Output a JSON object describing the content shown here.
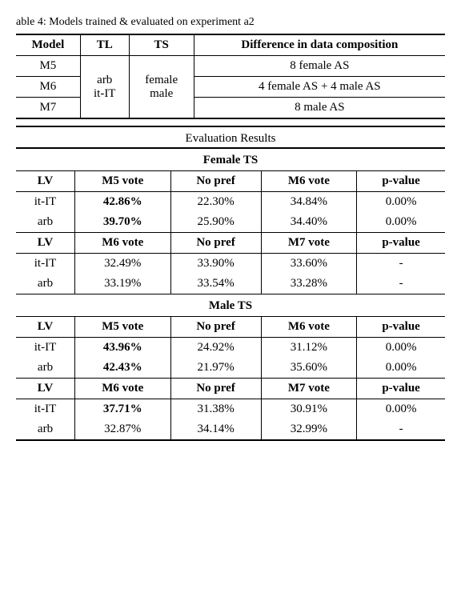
{
  "caption": "able 4: Models trained & evaluated on experiment a2",
  "table1": {
    "headers": {
      "model": "Model",
      "tl": "TL",
      "ts": "TS",
      "diff": "Difference in data composition"
    },
    "tl_lines": [
      "arb",
      "it-IT"
    ],
    "ts_lines": [
      "female",
      "male"
    ],
    "rows": [
      {
        "model": "M5",
        "diff": "8 female AS"
      },
      {
        "model": "M6",
        "diff": "4 female AS + 4 male AS"
      },
      {
        "model": "M7",
        "diff": "8 male AS"
      }
    ]
  },
  "eval_title": "Evaluation Results",
  "sections": [
    {
      "title": "Female TS",
      "blocks": [
        {
          "headers": {
            "lv": "LV",
            "c1": "M5 vote",
            "c2": "No pref",
            "c3": "M6 vote",
            "p": "p-value"
          },
          "rows": [
            {
              "lv": "it-IT",
              "c1": "42.86%",
              "c1_bold": true,
              "c2": "22.30%",
              "c3": "34.84%",
              "p": "0.00%"
            },
            {
              "lv": "arb",
              "c1": "39.70%",
              "c1_bold": true,
              "c2": "25.90%",
              "c3": "34.40%",
              "p": "0.00%"
            }
          ]
        },
        {
          "headers": {
            "lv": "LV",
            "c1": "M6 vote",
            "c2": "No pref",
            "c3": "M7 vote",
            "p": "p-value"
          },
          "rows": [
            {
              "lv": "it-IT",
              "c1": "32.49%",
              "c1_bold": false,
              "c2": "33.90%",
              "c3": "33.60%",
              "p": "-"
            },
            {
              "lv": "arb",
              "c1": "33.19%",
              "c1_bold": false,
              "c2": "33.54%",
              "c3": "33.28%",
              "p": "-"
            }
          ]
        }
      ]
    },
    {
      "title": "Male TS",
      "blocks": [
        {
          "headers": {
            "lv": "LV",
            "c1": "M5 vote",
            "c2": "No pref",
            "c3": "M6 vote",
            "p": "p-value"
          },
          "rows": [
            {
              "lv": "it-IT",
              "c1": "43.96%",
              "c1_bold": true,
              "c2": "24.92%",
              "c3": "31.12%",
              "p": "0.00%"
            },
            {
              "lv": "arb",
              "c1": "42.43%",
              "c1_bold": true,
              "c2": "21.97%",
              "c3": "35.60%",
              "p": "0.00%"
            }
          ]
        },
        {
          "headers": {
            "lv": "LV",
            "c1": "M6 vote",
            "c2": "No pref",
            "c3": "M7 vote",
            "p": "p-value"
          },
          "rows": [
            {
              "lv": "it-IT",
              "c1": "37.71%",
              "c1_bold": true,
              "c2": "31.38%",
              "c3": "30.91%",
              "p": "0.00%"
            },
            {
              "lv": "arb",
              "c1": "32.87%",
              "c1_bold": false,
              "c2": "34.14%",
              "c3": "32.99%",
              "p": "-"
            }
          ]
        }
      ]
    }
  ]
}
